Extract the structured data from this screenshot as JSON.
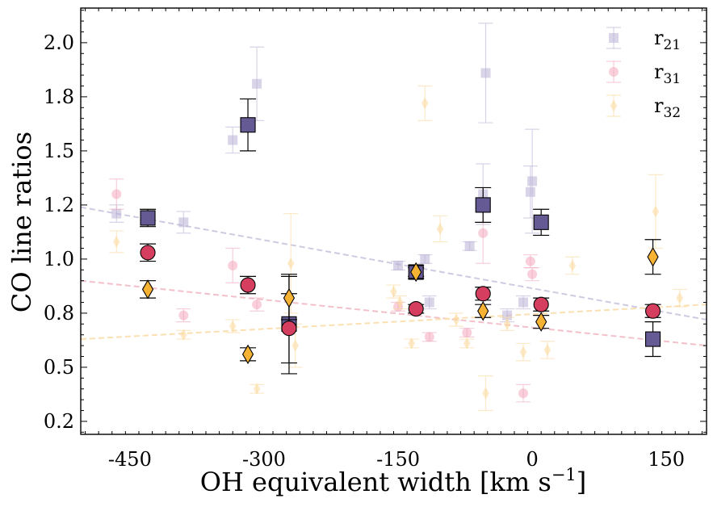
{
  "chart_data": {
    "type": "scatter",
    "title": "",
    "xlabel": "OH equivalent width [km s",
    "xlabel_sup": "−1",
    "xlabel_end": "]",
    "ylabel": "CO line ratios",
    "xlim": [
      -505,
      195
    ],
    "ylim": [
      0.19,
      2.16
    ],
    "xticks": [
      -450,
      -300,
      -150,
      0,
      150
    ],
    "xtick_labels": [
      "-450",
      "-300",
      "-150",
      "0",
      "150"
    ],
    "yticks": [
      0.25,
      0.5,
      0.75,
      1.0,
      1.25,
      1.5,
      1.75,
      2.0
    ],
    "ytick_labels": [
      "0.2",
      "0.5",
      "0.8",
      "1.0",
      "1.2",
      "1.5",
      "1.8",
      "2.0"
    ],
    "legend_position": "top-right",
    "legend": [
      {
        "key": "r21",
        "base": "r",
        "sub": "21"
      },
      {
        "key": "r31",
        "base": "r",
        "sub": "31"
      },
      {
        "key": "r32",
        "base": "r",
        "sub": "32"
      }
    ],
    "colors": {
      "r21_light": "#b9b0d6",
      "r21_dark": "#665a95",
      "r31_light": "#f3a7bb",
      "r31_dark": "#d63e5f",
      "r32_light": "#fbd89a",
      "r32_dark": "#f6b233",
      "r21_fit": "#cfcae2",
      "r31_fit": "#f3c0ca",
      "r32_fit": "#fbe0b2"
    },
    "fits": {
      "r21": {
        "x": [
          -505,
          195
        ],
        "y": [
          1.24,
          0.72
        ]
      },
      "r31": {
        "x": [
          -505,
          195
        ],
        "y": [
          0.9,
          0.6
        ]
      },
      "r32": {
        "x": [
          -505,
          195
        ],
        "y": [
          0.63,
          0.79
        ]
      }
    },
    "series": [
      {
        "name": "r21 individual",
        "marker": "square",
        "style": "light",
        "points": [
          {
            "x": -465,
            "y": 1.21,
            "err": 0.04
          },
          {
            "x": -390,
            "y": 1.17,
            "err": 0.05
          },
          {
            "x": -335,
            "y": 1.55,
            "err": 0.06
          },
          {
            "x": -308,
            "y": 1.81,
            "err": 0.17
          },
          {
            "x": -150,
            "y": 0.97,
            "err": 0.02
          },
          {
            "x": -120,
            "y": 1.0,
            "err": 0.02
          },
          {
            "x": -115,
            "y": 0.8,
            "err": 0.03
          },
          {
            "x": -70,
            "y": 1.06,
            "err": 0.02
          },
          {
            "x": -55,
            "y": 1.3,
            "err": 0.14
          },
          {
            "x": -52,
            "y": 1.86,
            "err": 0.23
          },
          {
            "x": -28,
            "y": 0.74,
            "err": 0.03
          },
          {
            "x": -10,
            "y": 0.8,
            "err": 0.03
          },
          {
            "x": -2,
            "y": 1.31,
            "err": 0.12
          },
          {
            "x": 0,
            "y": 1.36,
            "err": 0.24
          }
        ]
      },
      {
        "name": "r31 individual",
        "marker": "circle",
        "style": "light",
        "points": [
          {
            "x": -465,
            "y": 1.3,
            "err": 0.07
          },
          {
            "x": -390,
            "y": 0.74,
            "err": 0.03
          },
          {
            "x": -335,
            "y": 0.97,
            "err": 0.08
          },
          {
            "x": -308,
            "y": 0.79,
            "err": 0.03
          },
          {
            "x": -150,
            "y": 0.78,
            "err": 0.02
          },
          {
            "x": -115,
            "y": 0.64,
            "err": 0.02
          },
          {
            "x": -73,
            "y": 0.66,
            "err": 0.02
          },
          {
            "x": -55,
            "y": 1.12,
            "err": 0.14
          },
          {
            "x": -10,
            "y": 0.38,
            "err": 0.04
          },
          {
            "x": -2,
            "y": 0.99,
            "err": 0.03
          },
          {
            "x": 0,
            "y": 0.93,
            "err": 0.03
          }
        ]
      },
      {
        "name": "r32 individual",
        "marker": "diamond",
        "style": "light",
        "points": [
          {
            "x": -465,
            "y": 1.08,
            "err": 0.05
          },
          {
            "x": -390,
            "y": 0.65,
            "err": 0.02
          },
          {
            "x": -335,
            "y": 0.69,
            "err": 0.03
          },
          {
            "x": -308,
            "y": 0.4,
            "err": 0.02
          },
          {
            "x": -270,
            "y": 0.98,
            "err": 0.23
          },
          {
            "x": -265,
            "y": 0.6,
            "err": 0.1
          },
          {
            "x": -155,
            "y": 0.85,
            "err": 0.03
          },
          {
            "x": -148,
            "y": 0.8,
            "err": 0.03
          },
          {
            "x": -135,
            "y": 0.61,
            "err": 0.02
          },
          {
            "x": -120,
            "y": 1.72,
            "err": 0.08
          },
          {
            "x": -103,
            "y": 1.14,
            "err": 0.06
          },
          {
            "x": -85,
            "y": 0.72,
            "err": 0.03
          },
          {
            "x": -73,
            "y": 0.61,
            "err": 0.02
          },
          {
            "x": -52,
            "y": 0.38,
            "err": 0.08
          },
          {
            "x": -28,
            "y": 0.7,
            "err": 0.03
          },
          {
            "x": -10,
            "y": 0.57,
            "err": 0.04
          },
          {
            "x": 17,
            "y": 0.58,
            "err": 0.04
          },
          {
            "x": 45,
            "y": 0.97,
            "err": 0.04
          },
          {
            "x": 138,
            "y": 1.22,
            "err": 0.17
          },
          {
            "x": 165,
            "y": 0.82,
            "err": 0.04
          }
        ]
      },
      {
        "name": "r21 median",
        "marker": "square",
        "style": "dark",
        "points": [
          {
            "x": -430,
            "y": 1.19,
            "err": 0.04
          },
          {
            "x": -318,
            "y": 1.62,
            "err": 0.12
          },
          {
            "x": -272,
            "y": 0.7,
            "err": 0.23
          },
          {
            "x": -130,
            "y": 0.94,
            "err": 0.02
          },
          {
            "x": -55,
            "y": 1.25,
            "err": 0.08
          },
          {
            "x": 10,
            "y": 1.17,
            "err": 0.06
          },
          {
            "x": 135,
            "y": 0.63,
            "err": 0.08
          }
        ]
      },
      {
        "name": "r31 median",
        "marker": "circle",
        "style": "dark",
        "points": [
          {
            "x": -430,
            "y": 1.03,
            "err": 0.04
          },
          {
            "x": -318,
            "y": 0.88,
            "err": 0.04
          },
          {
            "x": -272,
            "y": 0.68,
            "err": 0.16
          },
          {
            "x": -130,
            "y": 0.77,
            "err": 0.02
          },
          {
            "x": -55,
            "y": 0.84,
            "err": 0.03
          },
          {
            "x": 10,
            "y": 0.79,
            "err": 0.03
          },
          {
            "x": 135,
            "y": 0.76,
            "err": 0.03
          }
        ]
      },
      {
        "name": "r32 median",
        "marker": "diamond",
        "style": "dark",
        "points": [
          {
            "x": -430,
            "y": 0.86,
            "err": 0.04
          },
          {
            "x": -318,
            "y": 0.56,
            "err": 0.03
          },
          {
            "x": -272,
            "y": 0.82,
            "err": 0.1
          },
          {
            "x": -130,
            "y": 0.94,
            "err": 0.03
          },
          {
            "x": -55,
            "y": 0.76,
            "err": 0.03
          },
          {
            "x": 10,
            "y": 0.71,
            "err": 0.03
          },
          {
            "x": 135,
            "y": 1.01,
            "err": 0.08
          }
        ]
      }
    ]
  }
}
